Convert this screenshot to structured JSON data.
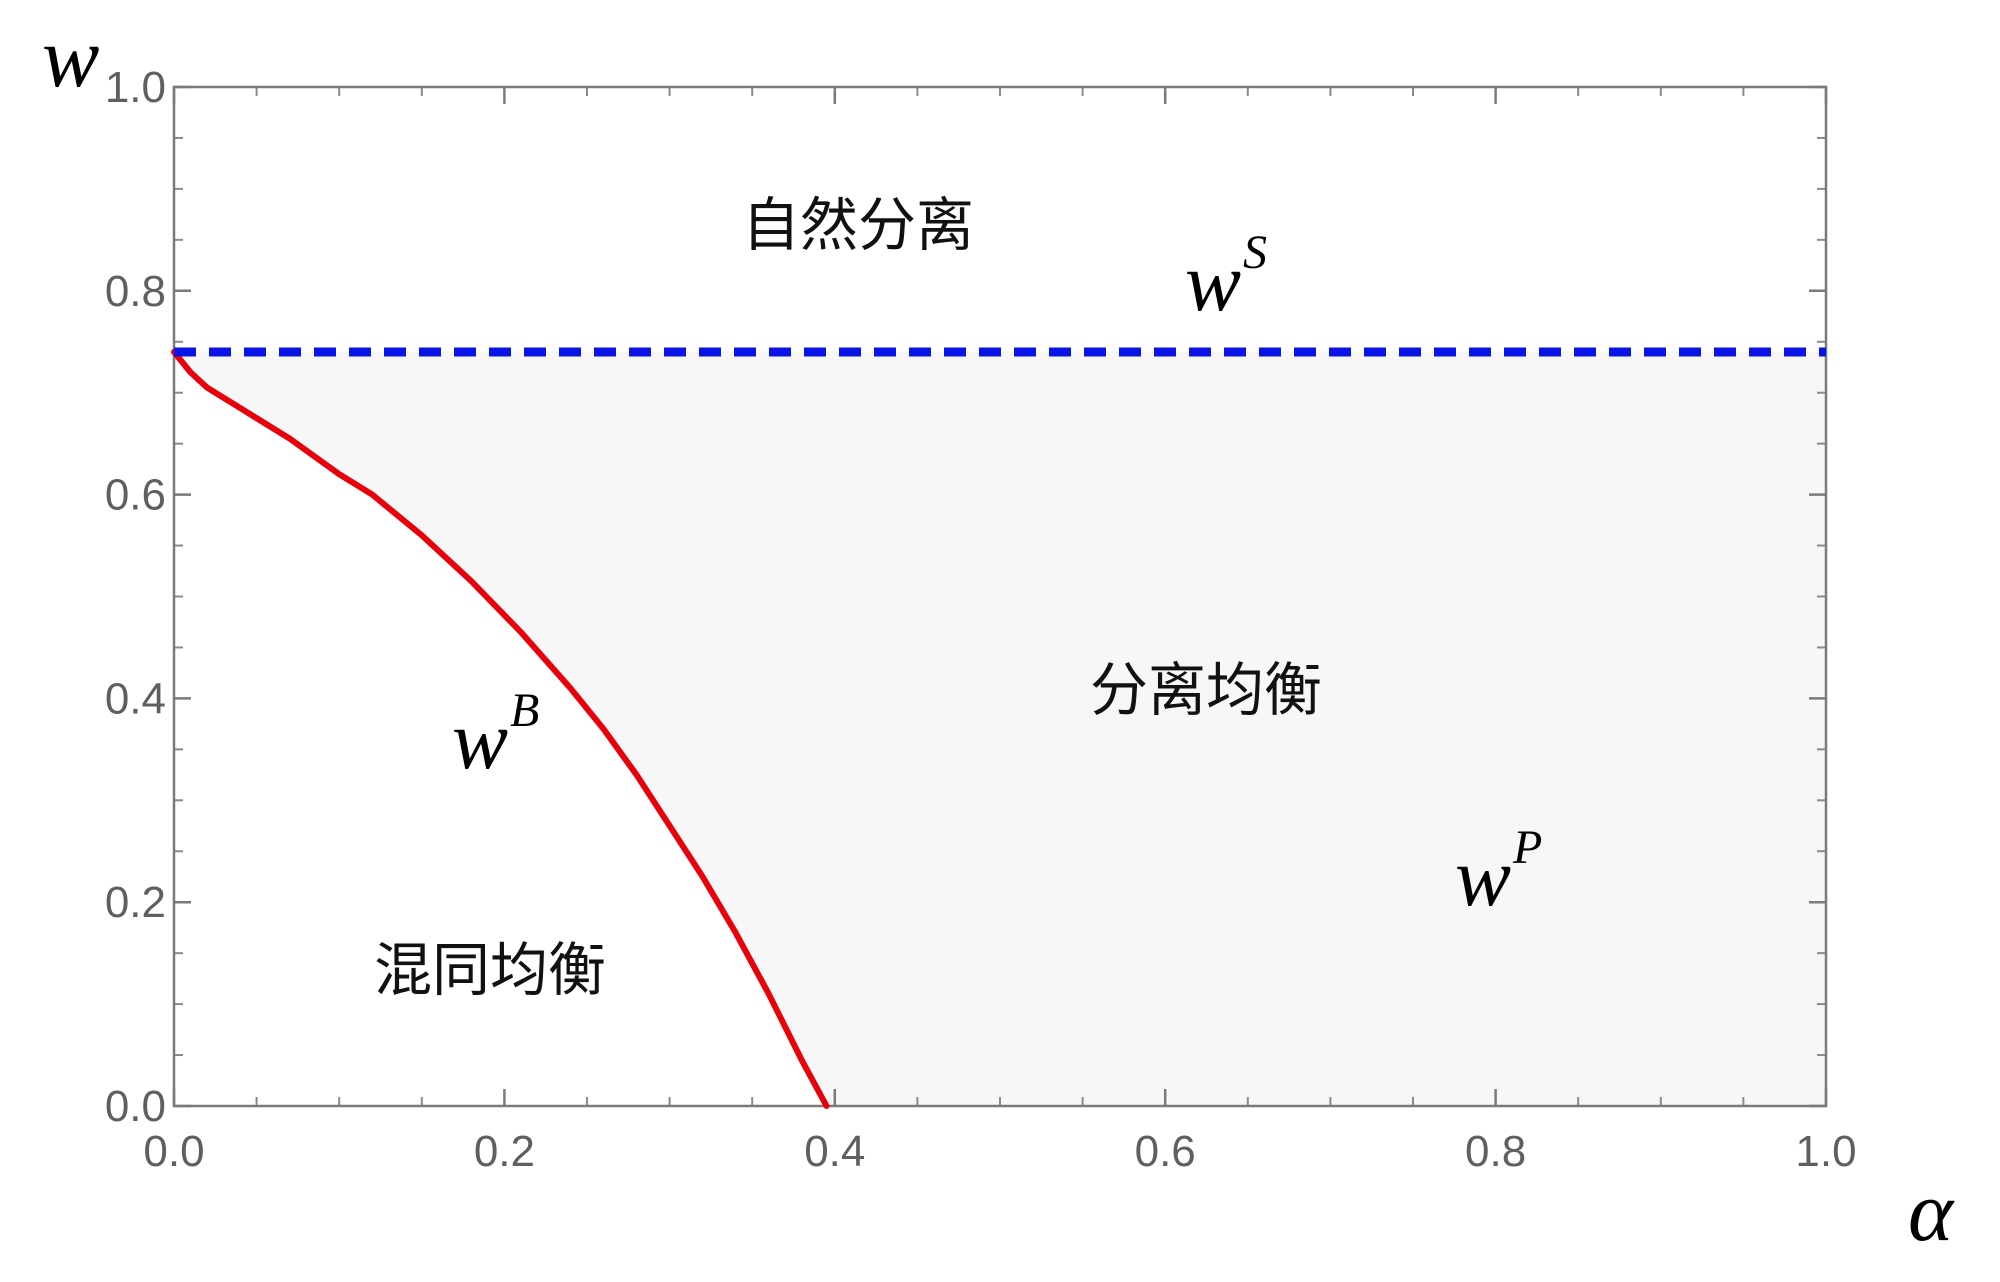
{
  "chart_data": {
    "type": "area",
    "title": "",
    "xlabel": "α",
    "ylabel": "w",
    "xlim": [
      0,
      1
    ],
    "ylim": [
      0,
      1
    ],
    "xticks": [
      "0.0",
      "0.2",
      "0.4",
      "0.6",
      "0.8",
      "1.0"
    ],
    "yticks": [
      "0.0",
      "0.2",
      "0.4",
      "0.6",
      "0.8",
      "1.0"
    ],
    "grid": false,
    "series": [
      {
        "name": "w^B",
        "style": "solid",
        "color": "#e8000b",
        "x": [
          0.0,
          0.01,
          0.02,
          0.04,
          0.07,
          0.1,
          0.12,
          0.15,
          0.18,
          0.21,
          0.24,
          0.26,
          0.28,
          0.3,
          0.32,
          0.34,
          0.36,
          0.38,
          0.395
        ],
        "y": [
          0.74,
          0.72,
          0.705,
          0.685,
          0.655,
          0.62,
          0.6,
          0.56,
          0.515,
          0.465,
          0.41,
          0.37,
          0.325,
          0.275,
          0.225,
          0.17,
          0.11,
          0.045,
          0.0
        ]
      },
      {
        "name": "w^S",
        "style": "dashed",
        "color": "#0a14e6",
        "x": [
          0.0,
          1.0
        ],
        "y": [
          0.74,
          0.74
        ]
      }
    ],
    "shaded_region": {
      "fill": "#f7f7f7",
      "between": "w^B and w^S, from left to right edge"
    },
    "annotations": {
      "natural_separation": "自然分离",
      "separating_equilibrium": "分离均衡",
      "pooling_equilibrium": "混同均衡",
      "w_s_base": "w",
      "w_s_sup": "S",
      "w_b_base": "w",
      "w_b_sup": "B",
      "w_p_base": "w",
      "w_p_sup": "P"
    }
  }
}
